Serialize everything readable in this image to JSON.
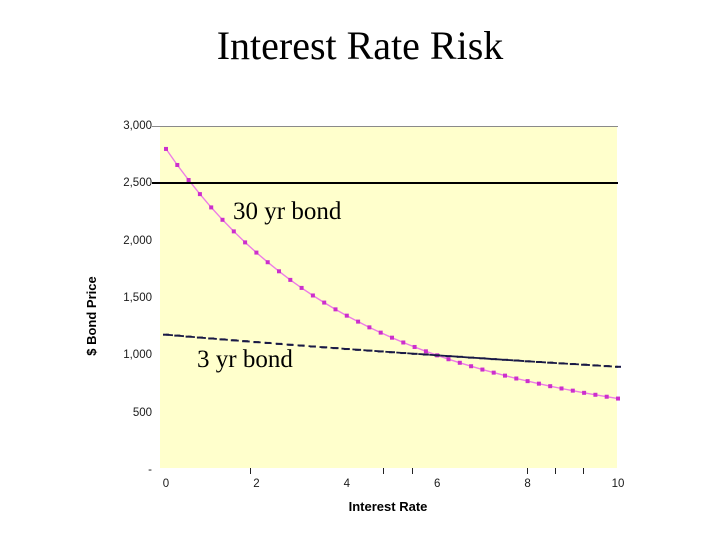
{
  "slide": {
    "title": "Interest Rate Risk"
  },
  "chart_data": {
    "type": "line",
    "title": "Interest Rate Risk",
    "xlabel": "Interest Rate",
    "ylabel": "$ Bond Price",
    "xlim": [
      0,
      10
    ],
    "ylim": [
      0,
      3000
    ],
    "x_start": 0,
    "x_step": 0.25,
    "x_tick_labels": [
      "0",
      "2",
      "4",
      "6",
      "8",
      "10"
    ],
    "x_tick_values": [
      0,
      2,
      4,
      6,
      8,
      10
    ],
    "y_tick_labels": [
      "3,000",
      "2,500",
      "2,000",
      "1,500",
      "1,000",
      "500",
      "-"
    ],
    "y_tick_values": [
      3000,
      2500,
      2000,
      1500,
      1000,
      500,
      0
    ],
    "grid": false,
    "legend": "none",
    "plot_bg_color": "#ffffcc",
    "ref_lines": [
      {
        "y": 3000,
        "color": "#8a8a8a",
        "thickness": 1
      },
      {
        "y": 2500,
        "color": "#000000",
        "thickness": 2
      }
    ],
    "minor_bottom_ticks_x": [
      1.86,
      4.8,
      5.44,
      7.99,
      8.61,
      9.22
    ],
    "series": [
      {
        "name": "30 yr bond",
        "marker": "square",
        "marker_color": "#cc2fcc",
        "line_color": "#ee7ce6",
        "values": [
          2800,
          2660,
          2529,
          2406,
          2290,
          2182,
          2081,
          1985,
          1896,
          1812,
          1733,
          1658,
          1588,
          1522,
          1460,
          1401,
          1346,
          1294,
          1244,
          1198,
          1154,
          1112,
          1073,
          1035,
          1000,
          966,
          935,
          905,
          876,
          849,
          823,
          798,
          775,
          753,
          731,
          711,
          692,
          673,
          656,
          639,
          623
        ]
      },
      {
        "name": "3 yr bond",
        "marker": "dash",
        "marker_color": "#191945",
        "line_color": "#191945",
        "values": [
          1180,
          1172,
          1163,
          1155,
          1147,
          1139,
          1131,
          1123,
          1115,
          1108,
          1100,
          1092,
          1085,
          1077,
          1070,
          1063,
          1055,
          1048,
          1041,
          1034,
          1027,
          1020,
          1013,
          1007,
          1000,
          993,
          987,
          980,
          974,
          967,
          961,
          955,
          948,
          942,
          936,
          930,
          924,
          918,
          912,
          906,
          900
        ]
      }
    ],
    "annotations": [
      {
        "text": "30 yr bond"
      },
      {
        "text": "3 yr bond"
      }
    ]
  }
}
